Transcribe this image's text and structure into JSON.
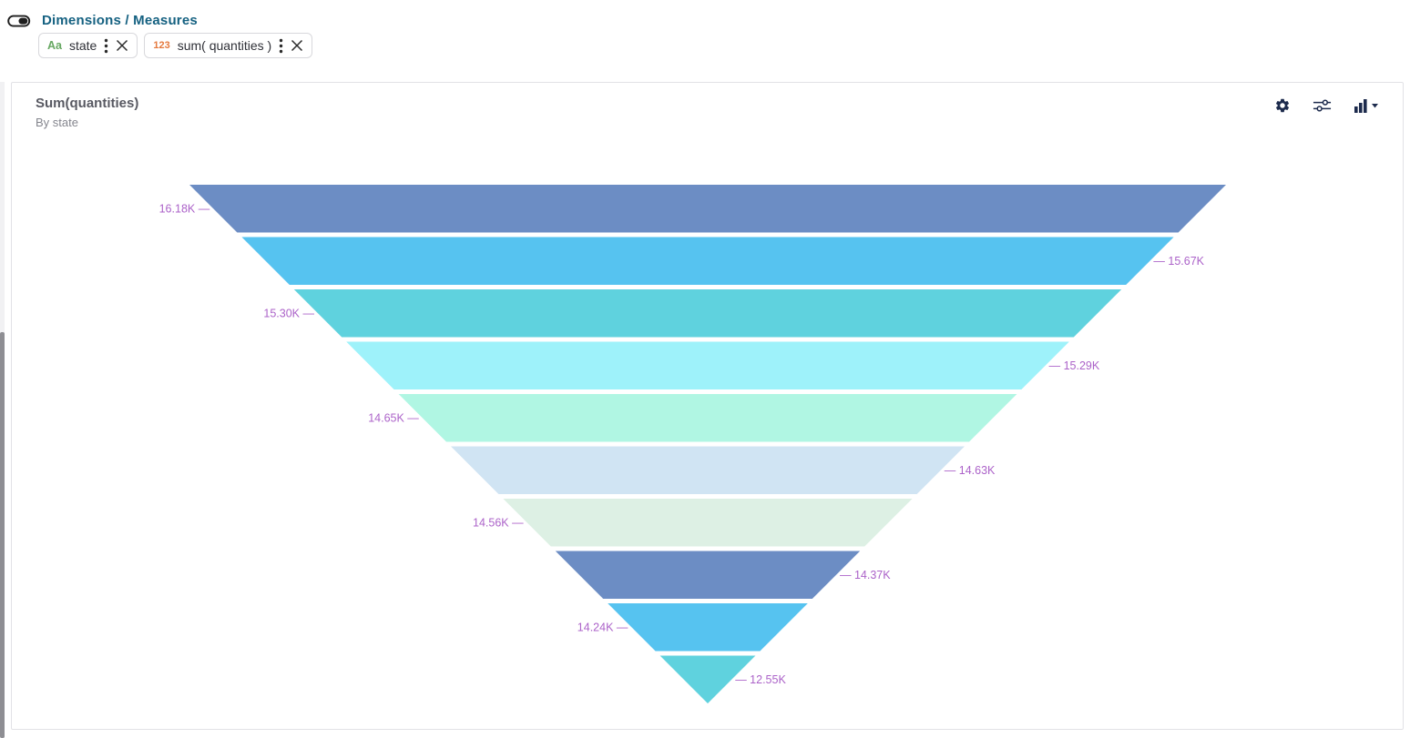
{
  "header": {
    "title": "Dimensions / Measures",
    "toggle_state": "on",
    "pills": [
      {
        "type_badge": "Aa",
        "badge_color": "#67a862",
        "label": "state"
      },
      {
        "type_badge": "123",
        "badge_color": "#e5793e",
        "label": "sum( quantities )"
      }
    ]
  },
  "card": {
    "title": "Sum(quantities)",
    "subtitle": "By state",
    "toolbar_icons": [
      "settings-gear",
      "tune-sliders",
      "chart-type-dropdown"
    ]
  },
  "chart_data": {
    "type": "funnel",
    "orientation": "inverted-pyramid",
    "title": "Sum(quantities)",
    "subtitle": "By state",
    "label_color": "#ac63c9",
    "palette": [
      "#6C8DC4",
      "#56C3F0",
      "#5FD2DE",
      "#9EF2FA",
      "#B0F6E3",
      "#D0E4F3",
      "#DDF0E4"
    ],
    "points": [
      {
        "label": "16.18K",
        "value": 16180,
        "side": "left",
        "color": "#6C8DC4"
      },
      {
        "label": "15.67K",
        "value": 15670,
        "side": "right",
        "color": "#56C3F0"
      },
      {
        "label": "15.30K",
        "value": 15300,
        "side": "left",
        "color": "#5FD2DE"
      },
      {
        "label": "15.29K",
        "value": 15290,
        "side": "right",
        "color": "#9EF2FA"
      },
      {
        "label": "14.65K",
        "value": 14650,
        "side": "left",
        "color": "#B0F6E3"
      },
      {
        "label": "14.63K",
        "value": 14630,
        "side": "right",
        "color": "#D0E4F3"
      },
      {
        "label": "14.56K",
        "value": 14560,
        "side": "left",
        "color": "#DDF0E4"
      },
      {
        "label": "14.37K",
        "value": 14370,
        "side": "right",
        "color": "#6C8DC4"
      },
      {
        "label": "14.24K",
        "value": 14240,
        "side": "left",
        "color": "#56C3F0"
      },
      {
        "label": "12.55K",
        "value": 12550,
        "side": "right",
        "color": "#5FD2DE"
      }
    ]
  }
}
